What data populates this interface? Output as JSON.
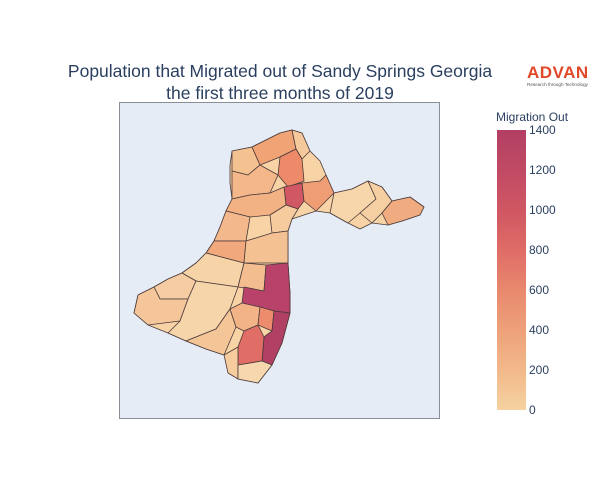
{
  "title": {
    "line1": "Population that Migrated out of Sandy Springs Georgia",
    "line2": "the first three months of 2019"
  },
  "logo": {
    "word": "ADVAN",
    "tagline": "Research through Technology"
  },
  "colorbar": {
    "title": "Migration Out",
    "min": 0,
    "max": 1400,
    "ticks": [
      "1400",
      "1200",
      "1000",
      "800",
      "600",
      "400",
      "200",
      "0"
    ],
    "colorscale": [
      "#f5d2a0",
      "#f2b98a",
      "#eea27a",
      "#e9886e",
      "#df6c66",
      "#d05763",
      "#c04a64",
      "#b23f64"
    ]
  },
  "map": {
    "land_color": "#f7d3a6",
    "background_color": "#e5ecf6",
    "regions_migration_out": [
      180,
      520,
      350,
      650,
      1250,
      950,
      900,
      820,
      780,
      1400,
      1300,
      300,
      420,
      600,
      380,
      250,
      200,
      700
    ]
  }
}
